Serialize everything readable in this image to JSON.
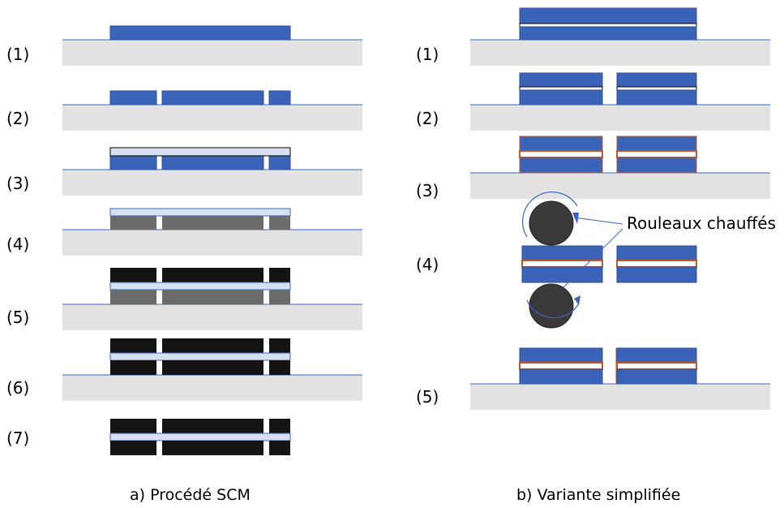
{
  "left": {
    "caption": "a) Procédé SCM",
    "steps": [
      "(1)",
      "(2)",
      "(3)",
      "(4)",
      "(5)",
      "(6)",
      "(7)"
    ]
  },
  "right": {
    "caption": "b) Variante simplifiée",
    "steps": [
      "(1)",
      "(2)",
      "(3)",
      "(4)",
      "(5)"
    ],
    "annotation": "Rouleaux chauffés"
  },
  "colors": {
    "blue": "#3b64b8",
    "light_blue": "#d6e0f0",
    "substrate": "#e2e2e2",
    "dark_grey": "#6b6b6b",
    "black": "#141414",
    "copper": "#c0572a",
    "roller": "#3a3a3a"
  }
}
